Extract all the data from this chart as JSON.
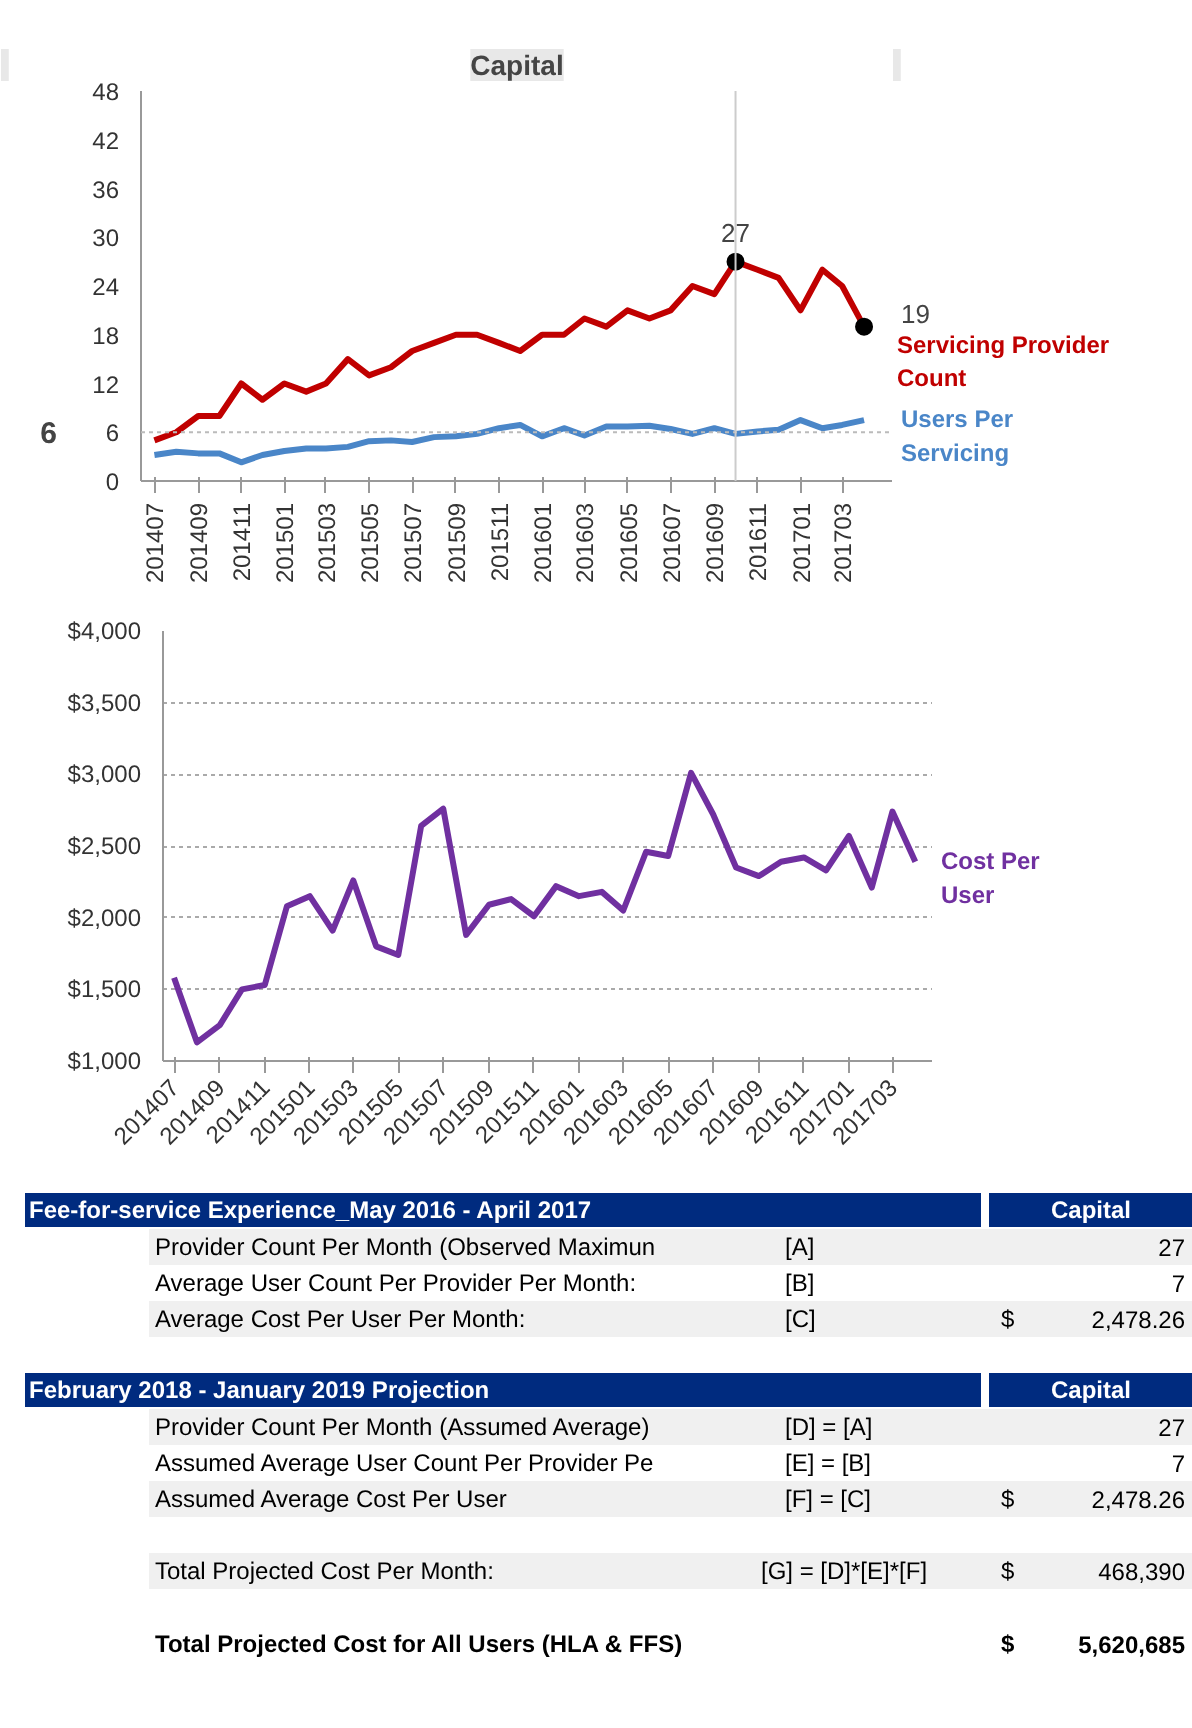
{
  "chart_data": [
    {
      "type": "line",
      "title": "Capital",
      "x": [
        "2014-07",
        "2014-08",
        "2014-09",
        "2014-10",
        "2014-11",
        "2014-12",
        "2015-01",
        "2015-02",
        "2015-03",
        "2015-04",
        "2015-05",
        "2015-06",
        "2015-07",
        "2015-08",
        "2015-09",
        "2015-10",
        "2015-11",
        "2015-12",
        "2016-01",
        "2016-02",
        "2016-03",
        "2016-04",
        "2016-05",
        "2016-06",
        "2016-07",
        "2016-08",
        "2016-09",
        "2016-10",
        "2016-11",
        "2016-12",
        "2017-01",
        "2017-02",
        "2017-03",
        "2017-04"
      ],
      "xlim": [
        "2014-06-12",
        "2017-05-12"
      ],
      "xticks": [
        {
          "value": "2014-07",
          "label": "201407"
        },
        {
          "value": "2014-09",
          "label": "201409"
        },
        {
          "value": "2014-11",
          "label": "201411"
        },
        {
          "value": "2015-01",
          "label": "201501"
        },
        {
          "value": "2015-03",
          "label": "201503"
        },
        {
          "value": "2015-05",
          "label": "201505"
        },
        {
          "value": "2015-07",
          "label": "201507"
        },
        {
          "value": "2015-09",
          "label": "201509"
        },
        {
          "value": "2015-11",
          "label": "201511"
        },
        {
          "value": "2016-01",
          "label": "201601"
        },
        {
          "value": "2016-03",
          "label": "201603"
        },
        {
          "value": "2016-05",
          "label": "201605"
        },
        {
          "value": "2016-07",
          "label": "201607"
        },
        {
          "value": "2016-09",
          "label": "201609"
        },
        {
          "value": "2016-11",
          "label": "201611"
        },
        {
          "value": "2017-01",
          "label": "201701"
        },
        {
          "value": "2017-03",
          "label": "201703"
        }
      ],
      "ylim": [
        0,
        48
      ],
      "yticks": [
        0,
        6,
        12,
        18,
        24,
        30,
        36,
        42,
        48
      ],
      "series": [
        {
          "name": "Servicing Provider Count",
          "color": "#c00000",
          "values": [
            5,
            6,
            8,
            8,
            12,
            10,
            12,
            11,
            12,
            15,
            13,
            14,
            16,
            17,
            18,
            18,
            17,
            16,
            18,
            18,
            20,
            19,
            21,
            20,
            21,
            24,
            23,
            27,
            26,
            25,
            21,
            26,
            24,
            19
          ]
        },
        {
          "name": "Users Per Servicing",
          "color": "#4a86c8",
          "values": [
            3.2,
            3.6,
            3.4,
            3.4,
            2.3,
            3.2,
            3.7,
            4.0,
            4.0,
            4.2,
            4.9,
            5.0,
            4.8,
            5.4,
            5.5,
            5.8,
            6.5,
            6.9,
            5.5,
            6.5,
            5.6,
            6.7,
            6.7,
            6.8,
            6.4,
            5.8,
            6.5,
            5.8,
            6.1,
            6.3,
            7.5,
            6.5,
            6.9,
            7.5
          ]
        }
      ],
      "ref_lines": [
        {
          "axis": "y",
          "value": 6,
          "label": "6"
        },
        {
          "axis": "x",
          "value": "2016-10"
        }
      ],
      "annotations": [
        {
          "text": "27",
          "x": "2016-10",
          "y": 27
        },
        {
          "text": "19",
          "x": "2017-04",
          "y": 19
        }
      ]
    },
    {
      "type": "line",
      "x": [
        "2014-07",
        "2014-08",
        "2014-09",
        "2014-10",
        "2014-11",
        "2014-12",
        "2015-01",
        "2015-02",
        "2015-03",
        "2015-04",
        "2015-05",
        "2015-06",
        "2015-07",
        "2015-08",
        "2015-09",
        "2015-10",
        "2015-11",
        "2015-12",
        "2016-01",
        "2016-02",
        "2016-03",
        "2016-04",
        "2016-05",
        "2016-06",
        "2016-07",
        "2016-08",
        "2016-09",
        "2016-10",
        "2016-11",
        "2016-12",
        "2017-01",
        "2017-02",
        "2017-03",
        "2017-04"
      ],
      "xlim": [
        "2014-06-16",
        "2017-04-25"
      ],
      "xticks": [
        {
          "value": "2014-07",
          "label": "201407"
        },
        {
          "value": "2014-09",
          "label": "201409"
        },
        {
          "value": "2014-11",
          "label": "201411"
        },
        {
          "value": "2015-01",
          "label": "201501"
        },
        {
          "value": "2015-03",
          "label": "201503"
        },
        {
          "value": "2015-05",
          "label": "201505"
        },
        {
          "value": "2015-07",
          "label": "201507"
        },
        {
          "value": "2015-09",
          "label": "201509"
        },
        {
          "value": "2015-11",
          "label": "201511"
        },
        {
          "value": "2016-01",
          "label": "201601"
        },
        {
          "value": "2016-03",
          "label": "201603"
        },
        {
          "value": "2016-05",
          "label": "201605"
        },
        {
          "value": "2016-07",
          "label": "201607"
        },
        {
          "value": "2016-09",
          "label": "201609"
        },
        {
          "value": "2016-11",
          "label": "201611"
        },
        {
          "value": "2017-01",
          "label": "201701"
        },
        {
          "value": "2017-03",
          "label": "201703"
        }
      ],
      "ylim": [
        1000,
        4000
      ],
      "yticks": [
        {
          "value": 1000,
          "label": "$1,000"
        },
        {
          "value": 1500,
          "label": "$1,500"
        },
        {
          "value": 2000,
          "label": "$2,000"
        },
        {
          "value": 2500,
          "label": "$2,500"
        },
        {
          "value": 3000,
          "label": "$3,000"
        },
        {
          "value": 3500,
          "label": "$3,500"
        },
        {
          "value": 4000,
          "label": "$4,000"
        }
      ],
      "grid": "y",
      "series": [
        {
          "name": "Cost Per User",
          "color": "#7030a0",
          "values": [
            1580,
            1130,
            1250,
            1500,
            1530,
            2080,
            2150,
            1910,
            2260,
            1800,
            1740,
            2640,
            2760,
            1880,
            2090,
            2130,
            2010,
            2220,
            2150,
            2180,
            2050,
            2460,
            2430,
            3010,
            2720,
            2350,
            2290,
            2390,
            2420,
            2330,
            2570,
            2210,
            2740,
            2390
          ]
        }
      ]
    },
    {
      "type": "other",
      "cell_labels": [
        [
          "Fee-for-service Experience_May 2016 - April 2017",
          null,
          null,
          "Capital"
        ],
        [
          "Provider Count Per Month (Observed Maximun",
          "[A]",
          null,
          "27"
        ],
        [
          "Average User Count Per Provider Per Month:",
          "[B]",
          null,
          "7"
        ],
        [
          "Average Cost Per User Per Month:",
          "[C]",
          "$",
          "2,478.26"
        ],
        [
          "February 2018 - January 2019 Projection",
          null,
          null,
          "Capital"
        ],
        [
          "Provider Count Per Month (Assumed Average)",
          "[D] = [A]",
          null,
          "27"
        ],
        [
          "Assumed Average User Count Per Provider Pe",
          "[E] = [B]",
          null,
          "7"
        ],
        [
          "Assumed Average Cost Per User",
          "[F] = [C]",
          "$",
          "2,478.26"
        ],
        [
          null,
          null,
          null,
          null
        ],
        [
          "Total Projected Cost Per Month:",
          "[G] = [D]*[E]*[F]",
          "$",
          "468,390"
        ],
        [
          null,
          null,
          null,
          null
        ],
        [
          "Total Projected Cost for All Users (HLA & FFS)",
          null,
          "$",
          "5,620,685"
        ]
      ]
    }
  ]
}
